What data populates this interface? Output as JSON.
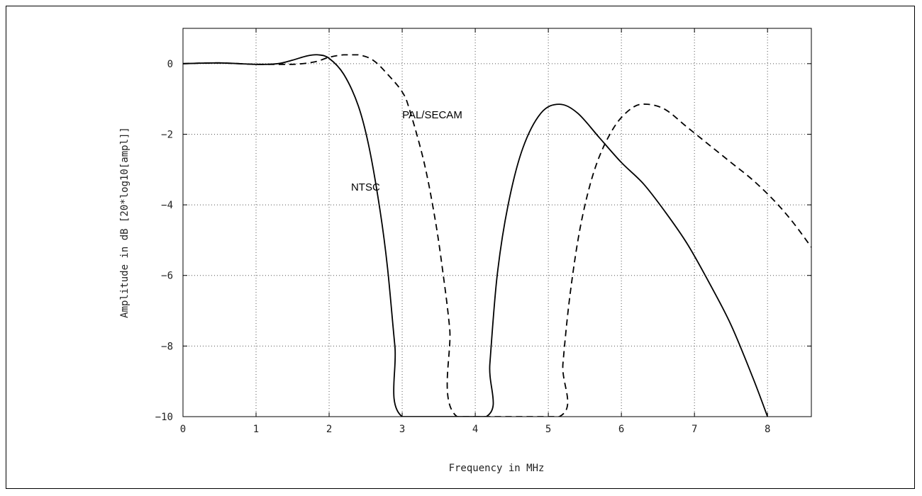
{
  "chart_data": {
    "type": "line",
    "title": "",
    "xlabel": "Frequency in MHz",
    "ylabel": "Amplitude in dB [20*log10[ampl]]",
    "xlim": [
      0,
      8.6
    ],
    "ylim": [
      -10,
      1
    ],
    "xticks": [
      0,
      1,
      2,
      3,
      4,
      5,
      6,
      7,
      8
    ],
    "yticks": [
      0,
      -2,
      -4,
      -6,
      -8,
      -10
    ],
    "xtick_labels": [
      "0",
      "1",
      "2",
      "3",
      "4",
      "5",
      "6",
      "7",
      "8"
    ],
    "ytick_labels": [
      "0",
      "−2",
      "−4",
      "−6",
      "−8",
      "−10"
    ],
    "grid": true,
    "annotations": [
      {
        "text": "NTSC",
        "x": 2.3,
        "y": -3.6
      },
      {
        "text": "PAL/SECAM",
        "x": 3.0,
        "y": -1.55
      }
    ],
    "series": [
      {
        "name": "NTSC",
        "style": "solid",
        "color": "#000000",
        "points": [
          [
            0,
            0
          ],
          [
            0.5,
            0.02
          ],
          [
            1.0,
            -0.02
          ],
          [
            1.3,
            0.0
          ],
          [
            1.5,
            0.1
          ],
          [
            1.7,
            0.22
          ],
          [
            1.85,
            0.25
          ],
          [
            2.0,
            0.15
          ],
          [
            2.2,
            -0.3
          ],
          [
            2.4,
            -1.2
          ],
          [
            2.55,
            -2.4
          ],
          [
            2.7,
            -4.2
          ],
          [
            2.8,
            -5.8
          ],
          [
            2.9,
            -8.0
          ],
          [
            3.0,
            -10.0
          ],
          [
            4.15,
            -10.0
          ],
          [
            4.2,
            -8.5
          ],
          [
            4.3,
            -6.0
          ],
          [
            4.45,
            -4.0
          ],
          [
            4.65,
            -2.4
          ],
          [
            4.9,
            -1.4
          ],
          [
            5.15,
            -1.15
          ],
          [
            5.4,
            -1.4
          ],
          [
            5.7,
            -2.1
          ],
          [
            6.0,
            -2.8
          ],
          [
            6.3,
            -3.4
          ],
          [
            6.6,
            -4.2
          ],
          [
            6.9,
            -5.1
          ],
          [
            7.2,
            -6.2
          ],
          [
            7.5,
            -7.4
          ],
          [
            7.8,
            -8.9
          ],
          [
            8.0,
            -10.0
          ]
        ]
      },
      {
        "name": "PAL/SECAM",
        "style": "dashed",
        "color": "#000000",
        "points": [
          [
            0,
            0
          ],
          [
            0.5,
            0.02
          ],
          [
            1.0,
            -0.02
          ],
          [
            1.5,
            -0.02
          ],
          [
            1.8,
            0.05
          ],
          [
            2.0,
            0.18
          ],
          [
            2.2,
            0.25
          ],
          [
            2.4,
            0.25
          ],
          [
            2.6,
            0.1
          ],
          [
            2.8,
            -0.3
          ],
          [
            3.0,
            -0.8
          ],
          [
            3.1,
            -1.3
          ],
          [
            3.3,
            -2.8
          ],
          [
            3.45,
            -4.4
          ],
          [
            3.55,
            -5.8
          ],
          [
            3.65,
            -7.5
          ],
          [
            3.75,
            -10.0
          ],
          [
            5.15,
            -10.0
          ],
          [
            5.2,
            -8.5
          ],
          [
            5.3,
            -6.5
          ],
          [
            5.45,
            -4.5
          ],
          [
            5.65,
            -2.9
          ],
          [
            5.9,
            -1.8
          ],
          [
            6.15,
            -1.25
          ],
          [
            6.35,
            -1.15
          ],
          [
            6.6,
            -1.3
          ],
          [
            6.9,
            -1.8
          ],
          [
            7.2,
            -2.3
          ],
          [
            7.5,
            -2.8
          ],
          [
            7.8,
            -3.3
          ],
          [
            8.1,
            -3.9
          ],
          [
            8.35,
            -4.5
          ],
          [
            8.6,
            -5.2
          ]
        ]
      }
    ]
  }
}
